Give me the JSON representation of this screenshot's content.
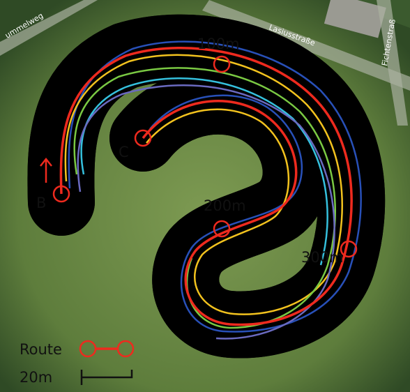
{
  "streets": [
    "ummelweg",
    "Lasiusstraße",
    "Fichtenstraß"
  ],
  "markers": {
    "start": "B",
    "end": "C",
    "m100": "100m",
    "m200": "200m",
    "m300": "300m"
  },
  "legend": {
    "route": "Route",
    "scale": "20m"
  }
}
